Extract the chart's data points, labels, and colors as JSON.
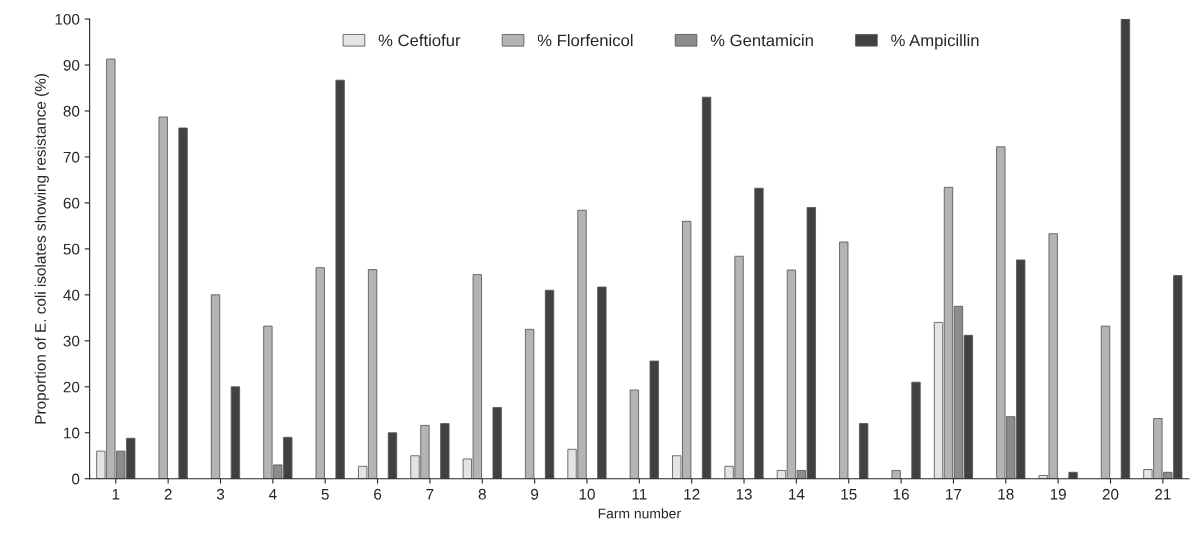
{
  "chart_data": {
    "type": "bar",
    "xlabel": "Farm number",
    "ylabel": "Proportion of E. coli isolates showing resistance (%)",
    "categories": [
      "1",
      "2",
      "3",
      "4",
      "5",
      "6",
      "7",
      "8",
      "9",
      "10",
      "11",
      "12",
      "13",
      "14",
      "15",
      "16",
      "17",
      "18",
      "19",
      "20",
      "21"
    ],
    "series": [
      {
        "name": "% Ceftiofur",
        "color": "#e4e4e4",
        "values": [
          6,
          0,
          0,
          0,
          0,
          2.7,
          5,
          4.3,
          0,
          6.4,
          0,
          5,
          2.7,
          1.8,
          0,
          0,
          34,
          0,
          0.7,
          0,
          2
        ]
      },
      {
        "name": "% Florfenicol",
        "color": "#b4b4b4",
        "values": [
          91.3,
          78.7,
          40,
          33.2,
          45.9,
          45.5,
          11.6,
          44.4,
          32.5,
          58.4,
          19.3,
          56,
          48.4,
          45.4,
          51.5,
          1.8,
          63.4,
          72.2,
          53.3,
          33.2,
          13.1
        ]
      },
      {
        "name": "% Gentamicin",
        "color": "#8c8c8c",
        "values": [
          6,
          0,
          0,
          3,
          0,
          0,
          0,
          0,
          0,
          0,
          0,
          0,
          0,
          1.8,
          0,
          0,
          37.5,
          13.5,
          0,
          0,
          1.4
        ]
      },
      {
        "name": "% Ampicillin",
        "color": "#414141",
        "values": [
          8.8,
          76.3,
          20,
          9,
          86.7,
          10,
          12,
          15.5,
          41,
          41.7,
          25.6,
          83,
          63.2,
          59,
          12,
          21,
          31.2,
          47.6,
          1.4,
          100,
          44.2
        ]
      }
    ],
    "ylim": [
      0,
      100
    ],
    "yticks": [
      0,
      10,
      20,
      30,
      40,
      50,
      60,
      70,
      80,
      90,
      100
    ],
    "grid": false,
    "legend": "top"
  }
}
